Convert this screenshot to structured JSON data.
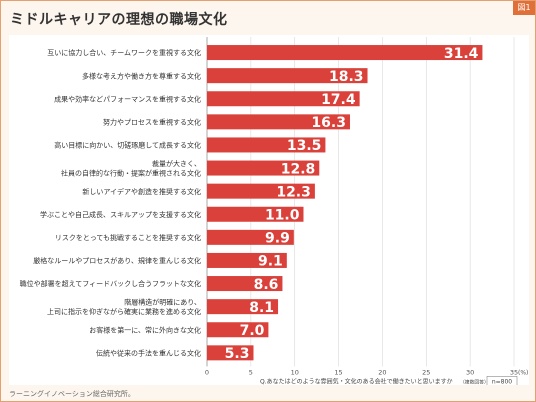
{
  "header": {
    "title": "ミドルキャリアの理想の職場文化",
    "figure_label": "図1"
  },
  "footer": {
    "source": "ラーニングイノベーション総合研究所。"
  },
  "colors": {
    "bar": "#d9413a",
    "accent": "#e0703a",
    "frame": "#e6a06f"
  },
  "chart_data": {
    "type": "bar",
    "orientation": "horizontal",
    "categories": [
      "互いに協力し合い、チームワークを重視する文化",
      "多様な考え方や働き方を尊重する文化",
      "成果や効率などパフォーマンスを重視する文化",
      "努力やプロセスを重視する文化",
      "高い目標に向かい、切磋琢磨して成長する文化",
      "裁量が大きく、\n社員の自律的な行動・提案が重視される文化",
      "新しいアイデアや創造を推奨する文化",
      "学ぶことや自己成長、スキルアップを支援する文化",
      "リスクをとっても挑戦することを推奨する文化",
      "厳格なルールやプロセスがあり、規律を重んじる文化",
      "職位や部署を超えてフィードバックし合うフラットな文化",
      "階層構造が明確にあり、\n上司に指示を仰ぎながら確実に業務を進める文化",
      "お客様を第一に、常に外向きな文化",
      "伝統や従来の手法を重んじる文化"
    ],
    "values": [
      31.4,
      18.3,
      17.4,
      16.3,
      13.5,
      12.8,
      12.3,
      11.0,
      9.9,
      9.1,
      8.6,
      8.1,
      7.0,
      5.3
    ],
    "value_labels": [
      "31.4",
      "18.3",
      "17.4",
      "16.3",
      "13.5",
      "12.8",
      "12.3",
      "11.0",
      "9.9",
      "9.1",
      "8.6",
      "8.1",
      "7.0",
      "5.3"
    ],
    "xlim": [
      0,
      35
    ],
    "xticks": [
      0,
      5,
      10,
      15,
      20,
      25,
      30,
      35
    ],
    "xunit": "(%)",
    "grid": true,
    "question": "Q.あなたはどのような雰囲気・文化のある会社で働きたいと思いますか",
    "question_note": "（複数回答）",
    "sample": "n=800"
  }
}
